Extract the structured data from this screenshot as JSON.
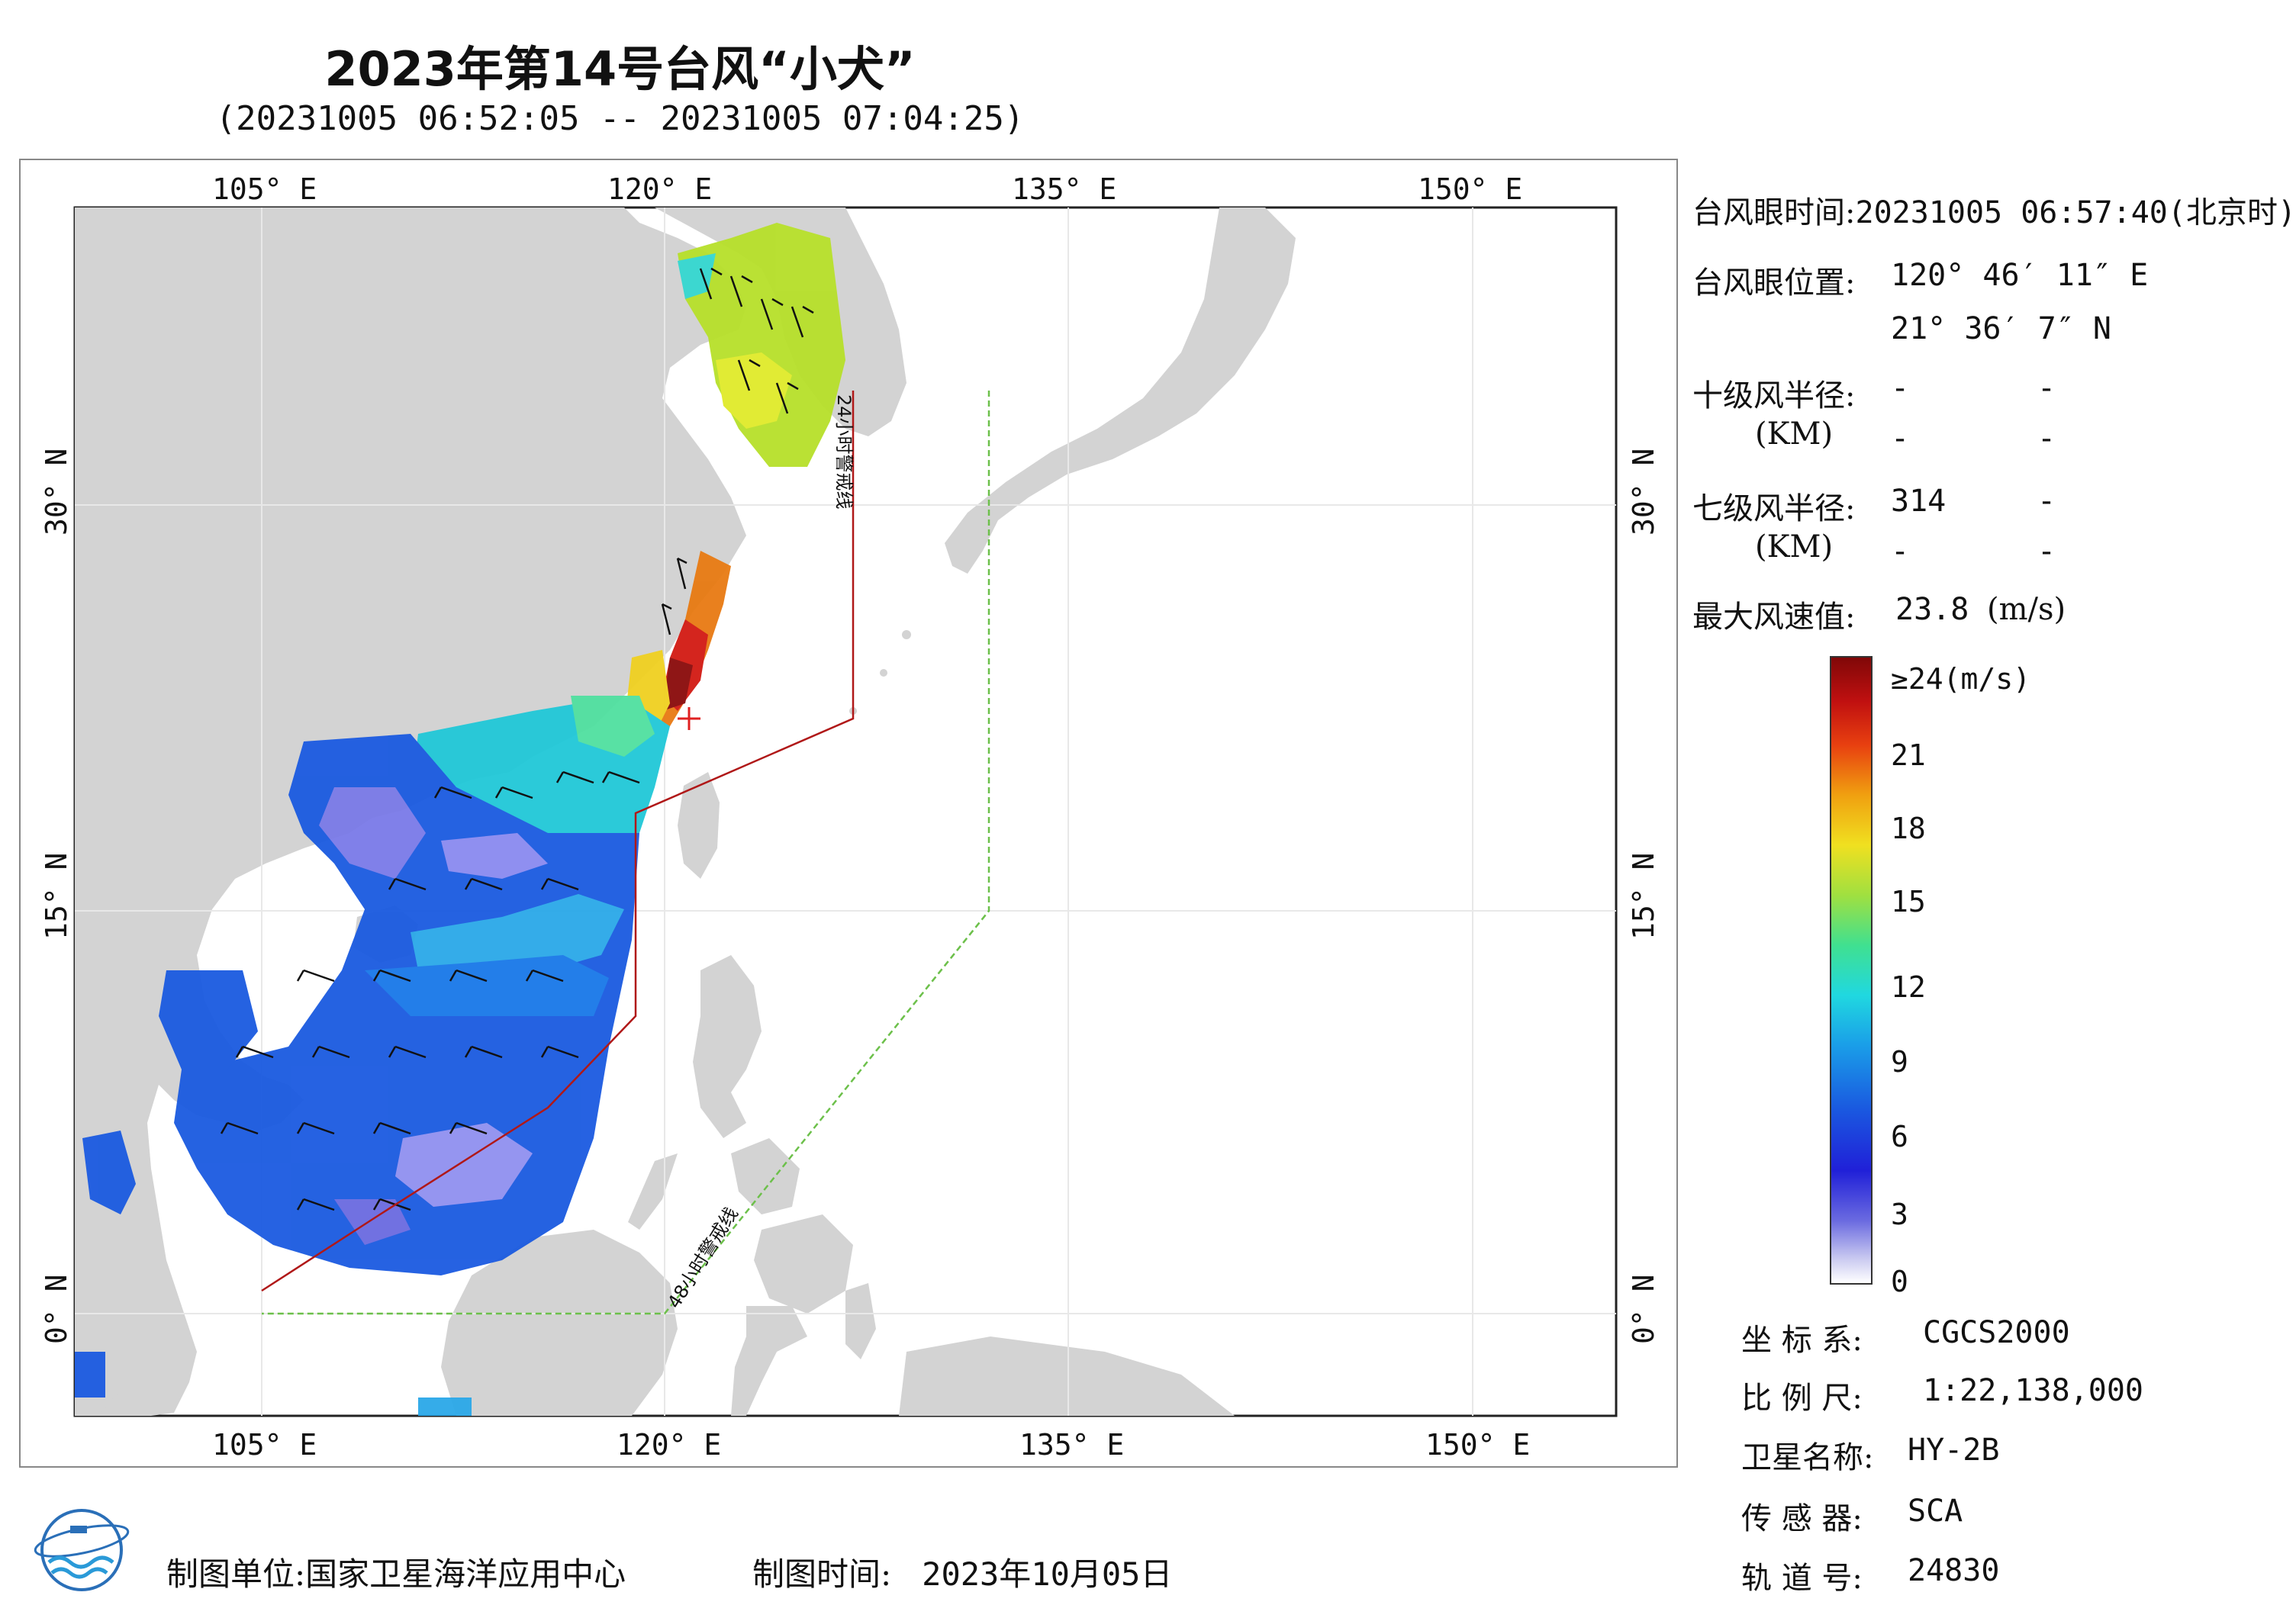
{
  "header": {
    "title": "2023年第14号台风“小犬”",
    "subtitle": "(20231005 06:52:05 -- 20231005 07:04:25)"
  },
  "map": {
    "lon_labels": [
      "105° E",
      "120° E",
      "135° E",
      "150° E"
    ],
    "lat_labels": [
      "30° N",
      "15° N",
      "0° N"
    ],
    "warning_24h": "24小时警戒线",
    "warning_48h": "48小时警戒线"
  },
  "info": {
    "eye_time_label": "台风眼时间:",
    "eye_time_value": "20231005 06:57:40(北京时)",
    "eye_pos_label": "台风眼位置:",
    "eye_lon": "120° 46′ 11″ E",
    "eye_lat": "21° 36′ 7″ N",
    "r10_label": "十级风半径:",
    "r10_v1": "-",
    "r10_v2": "-",
    "km_label": "(KM)",
    "r10_v3": "-",
    "r10_v4": "-",
    "r7_label": "七级风半径:",
    "r7_v1": "314",
    "r7_v2": "-",
    "r7_v3": "-",
    "r7_v4": "-",
    "max_label": "最大风速值:",
    "max_value": "23.8",
    "max_unit": "(m/s)"
  },
  "colorbar": {
    "labels": [
      "≥24(m/s)",
      "21",
      "18",
      "15",
      "12",
      "9",
      "6",
      "3",
      "0"
    ],
    "values": [
      24,
      21,
      18,
      15,
      12,
      9,
      6,
      3,
      0
    ]
  },
  "meta": {
    "crs_label": "坐 标 系:",
    "crs_value": "CGCS2000",
    "scale_label": "比 例 尺:",
    "scale_value": "1:22,138,000",
    "sat_label": "卫星名称:",
    "sat_value": "HY-2B",
    "sensor_label": "传 感 器:",
    "sensor_value": "SCA",
    "orbit_label": "轨 道 号:",
    "orbit_value": "24830"
  },
  "footer": {
    "org_label": "制图单位:",
    "org_value": "国家卫星海洋应用中心",
    "date_label": "制图时间:",
    "date_value": "2023年10月05日"
  },
  "colors": {
    "land": "#d3d3d3",
    "warning_line_24h": "#b01818",
    "warning_line_48h": "#6cc04a",
    "eye_marker": "#e02020"
  }
}
